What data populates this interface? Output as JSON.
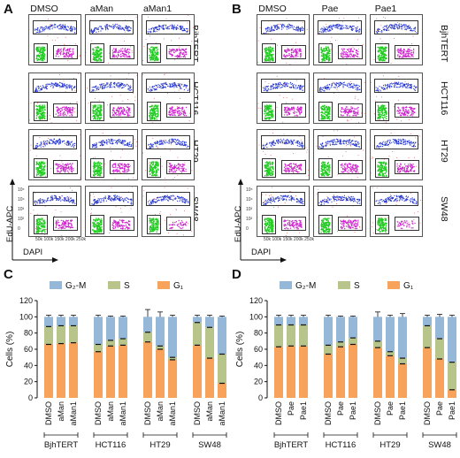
{
  "panels": {
    "A": {
      "letter": "A",
      "columns": [
        "DMSO",
        "aMan",
        "aMan1"
      ]
    },
    "B": {
      "letter": "B",
      "columns": [
        "DMSO",
        "Pae",
        "Pae1"
      ]
    },
    "C": {
      "letter": "C"
    },
    "D": {
      "letter": "D"
    }
  },
  "cell_lines": [
    "BjhTERT",
    "HCT116",
    "HT29",
    "SW48"
  ],
  "facs_axes": {
    "ylabel": "EdU-APC",
    "xlabel": "DAPI",
    "xticks": "50k 100k 150k 200k 250k",
    "yticks": [
      "10⁵",
      "10⁴",
      "10³",
      "10²",
      "0"
    ]
  },
  "colors": {
    "g2m": "#96b8d8",
    "s": "#b7c48a",
    "g1": "#f7a35c",
    "facs_s": "#2233cc",
    "facs_g1": "#22cc22",
    "facs_g2": "#cc22cc"
  },
  "chart_data": [
    {
      "type": "bar",
      "stacked": true,
      "panel": "C",
      "ylabel": "Cells (%)",
      "ylim": [
        0,
        120
      ],
      "yticks": [
        0,
        20,
        40,
        60,
        80,
        100,
        120
      ],
      "legend": [
        "G₂-M",
        "S",
        "G₁"
      ],
      "groups": [
        {
          "name": "BjhTERT",
          "categories": [
            "DMSO",
            "aMan",
            "aMan1"
          ]
        },
        {
          "name": "HCT116",
          "categories": [
            "DMSO",
            "aMan",
            "aMan1"
          ]
        },
        {
          "name": "HT29",
          "categories": [
            "DMSO",
            "aMan",
            "aMan1"
          ]
        },
        {
          "name": "SW48",
          "categories": [
            "DMSO",
            "aMan",
            "aMan1"
          ]
        }
      ],
      "series": [
        {
          "name": "G₁",
          "values": [
            66,
            67,
            68,
            57,
            64,
            65,
            69,
            60,
            47,
            65,
            49,
            18
          ]
        },
        {
          "name": "S",
          "values": [
            22,
            22,
            21,
            9,
            7,
            8,
            12,
            4,
            3,
            28,
            38,
            36
          ]
        },
        {
          "name": "G₂-M",
          "values": [
            12,
            11,
            11,
            34,
            29,
            27,
            19,
            36,
            50,
            7,
            13,
            46
          ]
        }
      ],
      "errors": [
        2,
        2,
        2,
        2,
        1,
        1,
        9,
        6,
        2,
        2,
        2,
        1
      ]
    },
    {
      "type": "bar",
      "stacked": true,
      "panel": "D",
      "ylabel": "Cells (%)",
      "ylim": [
        0,
        120
      ],
      "yticks": [
        0,
        20,
        40,
        60,
        80,
        100,
        120
      ],
      "legend": [
        "G₂-M",
        "S",
        "G₁"
      ],
      "groups": [
        {
          "name": "BjhTERT",
          "categories": [
            "DMSO",
            "Pae",
            "Pae1"
          ]
        },
        {
          "name": "HCT116",
          "categories": [
            "DMSO",
            "Pae",
            "Pae1"
          ]
        },
        {
          "name": "HT29",
          "categories": [
            "DMSO",
            "Pae",
            "Pae1"
          ]
        },
        {
          "name": "SW48",
          "categories": [
            "DMSO",
            "Pae",
            "Pae1"
          ]
        }
      ],
      "series": [
        {
          "name": "G₁",
          "values": [
            63,
            64,
            64,
            54,
            63,
            66,
            62,
            52,
            42,
            62,
            48,
            10
          ]
        },
        {
          "name": "S",
          "values": [
            27,
            26,
            26,
            11,
            6,
            8,
            8,
            5,
            7,
            27,
            25,
            34
          ]
        },
        {
          "name": "G₂-M",
          "values": [
            10,
            10,
            10,
            35,
            31,
            26,
            30,
            43,
            51,
            11,
            27,
            56
          ]
        }
      ],
      "errors": [
        2,
        2,
        2,
        2,
        1,
        1,
        6,
        2,
        4,
        2,
        3,
        2
      ]
    }
  ]
}
